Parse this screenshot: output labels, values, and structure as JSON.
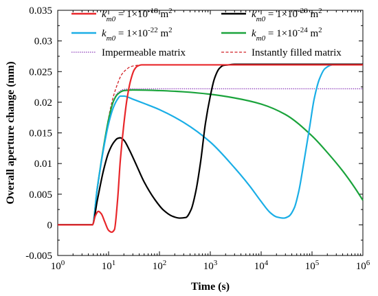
{
  "chart_data": {
    "type": "line",
    "title": "",
    "xlabel": "Time (s)",
    "ylabel": "Overall aperture change (mm)",
    "x_scale": "log",
    "xlim": [
      1,
      1000000
    ],
    "ylim": [
      -0.005,
      0.035
    ],
    "x_ticks": [
      1,
      10,
      100,
      1000,
      10000,
      100000,
      1000000
    ],
    "x_tick_labels": [
      {
        "base": "10",
        "exp": "0"
      },
      {
        "base": "10",
        "exp": "1"
      },
      {
        "base": "10",
        "exp": "2"
      },
      {
        "base": "10",
        "exp": "3"
      },
      {
        "base": "10",
        "exp": "4"
      },
      {
        "base": "10",
        "exp": "5"
      },
      {
        "base": "10",
        "exp": "6"
      }
    ],
    "y_ticks": [
      -0.005,
      0,
      0.005,
      0.01,
      0.015,
      0.02,
      0.025,
      0.03,
      0.035
    ],
    "y_tick_labels": [
      "-0.005",
      "0",
      "0.005",
      "0.01",
      "0.015",
      "0.02",
      "0.025",
      "0.03",
      "0.035"
    ],
    "grid": false,
    "legend_position": "top",
    "series": [
      {
        "name": "k_m0 = 1×10^-18 m^2",
        "label_parts": {
          "k": "k",
          "sub": "m0",
          "pre": " = 1×10",
          "exp": "-18",
          "unit": " m",
          "unit_exp": "2"
        },
        "color": "#e8262a",
        "dash": "solid",
        "x": [
          1,
          4.8,
          5.5,
          6.3,
          7.2,
          8.4,
          10,
          11.5,
          13,
          15,
          17,
          20,
          23,
          27,
          32,
          37,
          45,
          55,
          100,
          1000,
          10000,
          100000,
          1000000
        ],
        "y": [
          0,
          0,
          0.0015,
          0.0022,
          0.0018,
          0.0005,
          -0.0009,
          -0.0012,
          -0.0008,
          0.004,
          0.0105,
          0.0165,
          0.0205,
          0.0235,
          0.0253,
          0.0259,
          0.0261,
          0.0261,
          0.0261,
          0.0261,
          0.0261,
          0.0261,
          0.0261
        ]
      },
      {
        "name": "k_m0 = 1×10^-20 m^2",
        "label_parts": {
          "k": "k",
          "sub": "m0",
          "pre": " = 1×10",
          "exp": "-20",
          "unit": " m",
          "unit_exp": "2"
        },
        "color": "#000000",
        "dash": "solid",
        "x": [
          1,
          4.8,
          6,
          8,
          10,
          12.5,
          15,
          17,
          20,
          25,
          35,
          50,
          80,
          120,
          180,
          250,
          330,
          420,
          520,
          650,
          800,
          1000,
          1200,
          1500,
          1800,
          2300,
          3000,
          5000,
          100000,
          1000000
        ],
        "y": [
          0,
          0,
          0.004,
          0.009,
          0.0118,
          0.0134,
          0.0141,
          0.0142,
          0.0138,
          0.0124,
          0.0098,
          0.007,
          0.0042,
          0.0024,
          0.0014,
          0.0011,
          0.0012,
          0.0025,
          0.0055,
          0.0105,
          0.0165,
          0.021,
          0.0238,
          0.0255,
          0.026,
          0.0261,
          0.0262,
          0.0262,
          0.0262,
          0.0262
        ]
      },
      {
        "name": "k_m0 = 1×10^-22 m^2",
        "label_parts": {
          "k": "k",
          "sub": "m0",
          "pre": " = 1×10",
          "exp": "-22",
          "unit": " m",
          "unit_exp": "2"
        },
        "color": "#1aaee6",
        "dash": "solid",
        "x": [
          1,
          4.8,
          6,
          8,
          10,
          12.5,
          15,
          17,
          20,
          30,
          50,
          100,
          300,
          1000,
          3000,
          6000,
          10000,
          15000,
          20000,
          28000,
          35000,
          45000,
          55000,
          70000,
          90000,
          110000,
          140000,
          180000,
          250000,
          400000,
          1000000
        ],
        "y": [
          0,
          0,
          0.006,
          0.0125,
          0.0165,
          0.0192,
          0.0205,
          0.021,
          0.021,
          0.0205,
          0.0198,
          0.0188,
          0.0167,
          0.0135,
          0.0093,
          0.0063,
          0.0038,
          0.002,
          0.0013,
          0.0011,
          0.0014,
          0.0028,
          0.0055,
          0.0105,
          0.016,
          0.0205,
          0.0238,
          0.0255,
          0.0261,
          0.0262,
          0.0262
        ]
      },
      {
        "name": "k_m0 = 1×10^-24 m^2",
        "label_parts": {
          "k": "k",
          "sub": "m0",
          "pre": " = 1×10",
          "exp": "-24",
          "unit": " m",
          "unit_exp": "2"
        },
        "color": "#1aa33b",
        "dash": "solid",
        "x": [
          1,
          4.8,
          6,
          8,
          10,
          12.5,
          15,
          20,
          30,
          100,
          300,
          1000,
          3000,
          10000,
          30000,
          100000,
          200000,
          400000,
          700000,
          1000000
        ],
        "y": [
          0,
          0,
          0.006,
          0.0128,
          0.0172,
          0.0202,
          0.0213,
          0.0219,
          0.022,
          0.0219,
          0.0217,
          0.0213,
          0.0207,
          0.0197,
          0.018,
          0.0145,
          0.0118,
          0.0088,
          0.006,
          0.004
        ]
      },
      {
        "name": "Impermeable matrix",
        "color": "#8a3ab9",
        "dash": "dotted",
        "x": [
          1,
          4.8,
          6,
          8,
          10,
          12.5,
          15,
          20,
          30,
          100,
          1000,
          10000,
          100000,
          1000000
        ],
        "y": [
          0,
          0,
          0.006,
          0.0128,
          0.0172,
          0.0203,
          0.0215,
          0.0221,
          0.0222,
          0.0222,
          0.0222,
          0.0222,
          0.0222,
          0.0222
        ]
      },
      {
        "name": "Instantly filled matrix",
        "color": "#d11f24",
        "dash": "dashed",
        "x": [
          1,
          4.8,
          6,
          7,
          8.5,
          10,
          12,
          15,
          18,
          22,
          27,
          35,
          50,
          100,
          1000,
          10000,
          100000,
          1000000
        ],
        "y": [
          0,
          0,
          0.0055,
          0.0095,
          0.014,
          0.0175,
          0.0205,
          0.023,
          0.0245,
          0.0253,
          0.0258,
          0.026,
          0.0261,
          0.0261,
          0.0261,
          0.0261,
          0.0261,
          0.0261
        ]
      }
    ]
  }
}
